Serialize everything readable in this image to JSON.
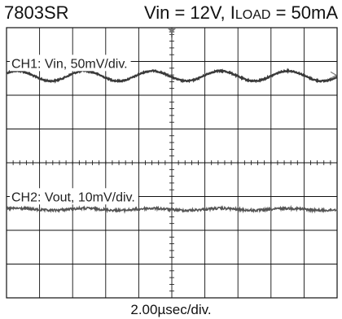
{
  "title": {
    "part": "7803SR",
    "vin_label": "Vin = 12V, I",
    "load_sub": "LOAD",
    "load_value": " = 50mA"
  },
  "chart_data": {
    "type": "line",
    "title": "7803SR Vin = 12V, ILOAD = 50mA",
    "xlabel": "2.00µsec/div.",
    "ylabel": "",
    "grid": true,
    "divisions": {
      "x": 10,
      "y": 8
    },
    "series": [
      {
        "name": "CH1: Vin, 50mV/div.",
        "scale_mV_per_div": 50,
        "center_div": 1.43,
        "ripple_period_div": 2.05,
        "ripple_amplitude_div": 0.15,
        "noise_amplitude_div": 0.04,
        "color": "#3a3a3a"
      },
      {
        "name": "CH2: Vout, 10mV/div.",
        "scale_mV_per_div": 10,
        "center_div": 5.38,
        "ripple_period_div": 2.05,
        "ripple_amplitude_div": 0.03,
        "noise_amplitude_div": 0.07,
        "color": "#555555"
      }
    ],
    "trigger_marker": "T",
    "colors": {
      "grid": "#111111",
      "background": "#ffffff"
    }
  }
}
